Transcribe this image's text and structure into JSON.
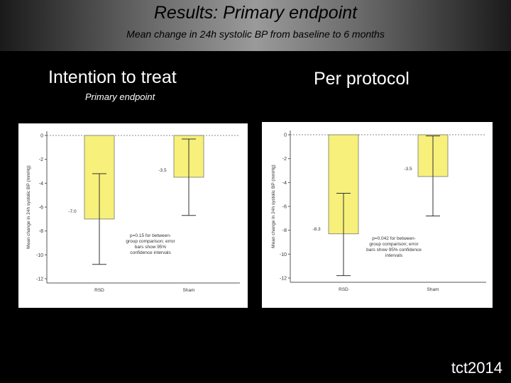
{
  "header": {
    "title": "Results: Primary endpoint",
    "subtitle": "Mean change in 24h systolic BP from baseline to 6 months"
  },
  "panels": {
    "left_title": "Intention to treat",
    "left_subtitle": "Primary endpoint",
    "right_title": "Per protocol"
  },
  "logo": "tct2014",
  "chart_data": [
    {
      "type": "bar",
      "categories": [
        "RSD",
        "Sham"
      ],
      "values": [
        -7.0,
        -3.5
      ],
      "value_labels": [
        "-7.0",
        "-3.5"
      ],
      "error_bars": [
        [
          -10.8,
          -3.2
        ],
        [
          -6.7,
          -0.3
        ]
      ],
      "ylabel": "Mean change in 24h systolic BP (mmHg)",
      "ylim": [
        -12,
        0
      ],
      "yticks": [
        0,
        -2,
        -4,
        -6,
        -8,
        -10,
        -12
      ],
      "annotation": [
        "p=0.15 for between-",
        "group comparison; error",
        "bars show 95%",
        "confidence intervals"
      ],
      "bar_color": "#f7f07a"
    },
    {
      "type": "bar",
      "categories": [
        "RSD",
        "Sham"
      ],
      "values": [
        -8.3,
        -3.5
      ],
      "value_labels": [
        "-8.3",
        "-3.5"
      ],
      "error_bars": [
        [
          -11.8,
          -4.9
        ],
        [
          -6.8,
          -0.1
        ]
      ],
      "ylabel": "Mean change in 24h systolic BP (mmHg)",
      "ylim": [
        -12,
        0
      ],
      "yticks": [
        0,
        -2,
        -4,
        -6,
        -8,
        -10,
        -12
      ],
      "annotation": [
        "p=0.042 for between-",
        "group comparison; error",
        "bars show 95% confidence",
        "intervals"
      ],
      "bar_color": "#f7f07a"
    }
  ]
}
